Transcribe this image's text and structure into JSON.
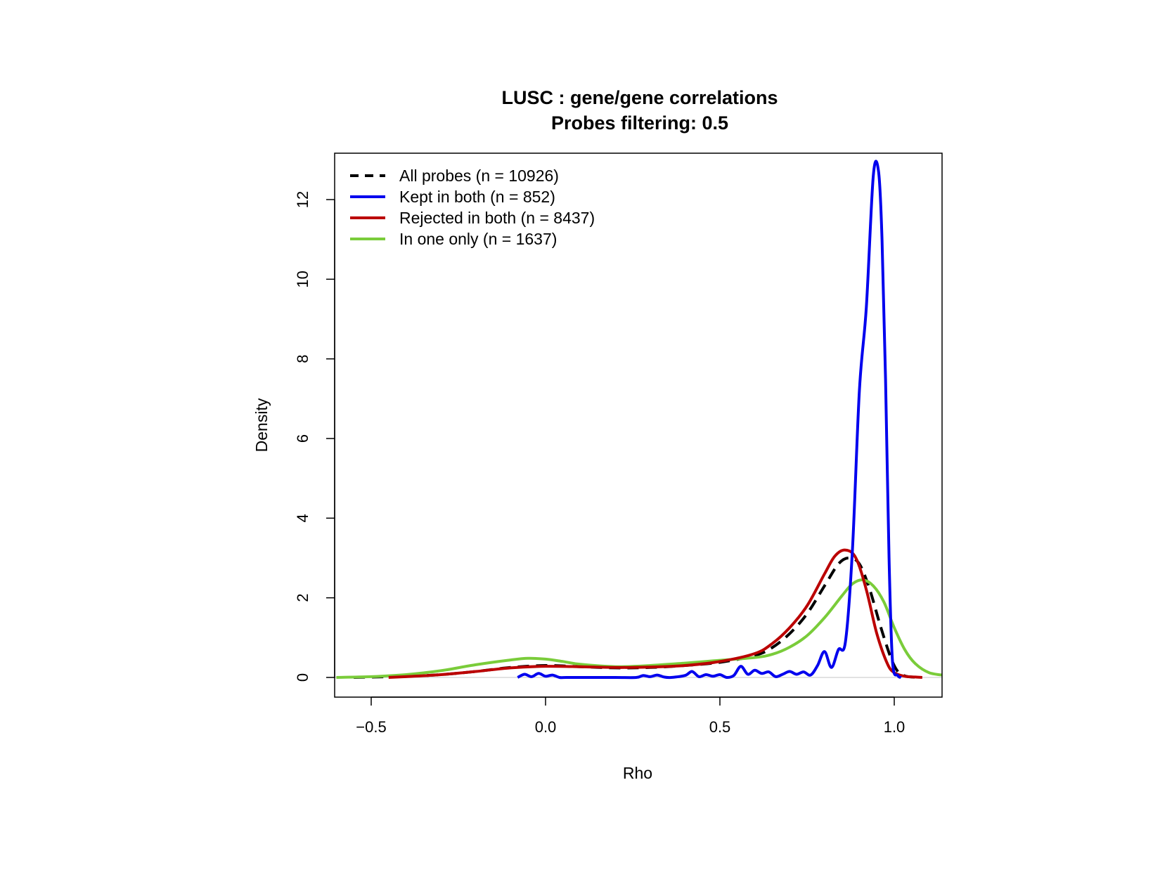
{
  "chart_data": {
    "type": "line",
    "title": "LUSC : gene/gene correlations",
    "subtitle": "Probes filtering: 0.5",
    "xlabel": "Rho",
    "ylabel": "Density",
    "xlim": [
      -0.6,
      1.15
    ],
    "ylim": [
      -0.5,
      13.2
    ],
    "x_ticks": [
      -0.5,
      0.0,
      0.5,
      1.0
    ],
    "x_tick_labels": [
      "−0.5",
      "0.0",
      "0.5",
      "1.0"
    ],
    "y_ticks": [
      0,
      2,
      4,
      6,
      8,
      10,
      12
    ],
    "y_tick_labels": [
      "0",
      "2",
      "4",
      "6",
      "8",
      "10",
      "12"
    ],
    "zero_line": true,
    "grid": false,
    "legend_position": "top-left",
    "series": [
      {
        "name": "All probes (n = 10926)",
        "color": "#000000",
        "dash": "dashed",
        "x": [
          -0.55,
          -0.4,
          -0.3,
          -0.2,
          -0.1,
          0.0,
          0.1,
          0.2,
          0.3,
          0.4,
          0.5,
          0.6,
          0.65,
          0.7,
          0.75,
          0.8,
          0.84,
          0.87,
          0.9,
          0.93,
          0.96,
          0.99,
          1.01,
          1.03,
          1.05,
          1.08
        ],
        "y": [
          0.0,
          0.03,
          0.07,
          0.15,
          0.25,
          0.3,
          0.27,
          0.24,
          0.25,
          0.3,
          0.38,
          0.55,
          0.75,
          1.1,
          1.6,
          2.3,
          2.85,
          3.0,
          2.85,
          2.2,
          1.3,
          0.5,
          0.15,
          0.04,
          0.01,
          0.0
        ]
      },
      {
        "name": "Kept in both (n = 852)",
        "color": "#0000ee",
        "dash": "solid",
        "x": [
          -0.08,
          -0.06,
          -0.04,
          -0.02,
          0.0,
          0.02,
          0.04,
          0.06,
          0.1,
          0.2,
          0.26,
          0.28,
          0.3,
          0.32,
          0.34,
          0.36,
          0.4,
          0.42,
          0.44,
          0.46,
          0.48,
          0.5,
          0.52,
          0.54,
          0.56,
          0.58,
          0.6,
          0.62,
          0.64,
          0.66,
          0.68,
          0.7,
          0.72,
          0.74,
          0.76,
          0.78,
          0.8,
          0.82,
          0.84,
          0.86,
          0.88,
          0.9,
          0.92,
          0.94,
          0.955,
          0.965,
          0.975,
          0.985,
          0.995,
          1.01,
          1.02
        ],
        "y": [
          0.0,
          0.08,
          0.02,
          0.1,
          0.03,
          0.06,
          0.0,
          0.0,
          0.0,
          0.0,
          0.0,
          0.05,
          0.02,
          0.06,
          0.01,
          0.0,
          0.05,
          0.15,
          0.02,
          0.07,
          0.03,
          0.07,
          0.0,
          0.05,
          0.28,
          0.08,
          0.18,
          0.1,
          0.14,
          0.02,
          0.08,
          0.15,
          0.08,
          0.14,
          0.06,
          0.3,
          0.65,
          0.25,
          0.7,
          0.9,
          3.2,
          7.2,
          9.3,
          12.6,
          12.7,
          11.0,
          7.5,
          3.0,
          0.4,
          0.05,
          0.0
        ]
      },
      {
        "name": "Rejected in both (n = 8437)",
        "color": "#bb0000",
        "dash": "solid",
        "x": [
          -0.45,
          -0.4,
          -0.3,
          -0.2,
          -0.1,
          0.0,
          0.1,
          0.2,
          0.3,
          0.4,
          0.5,
          0.6,
          0.65,
          0.7,
          0.75,
          0.8,
          0.83,
          0.86,
          0.89,
          0.92,
          0.95,
          0.98,
          1.0,
          1.03,
          1.06,
          1.08
        ],
        "y": [
          0.0,
          0.02,
          0.07,
          0.15,
          0.24,
          0.28,
          0.27,
          0.25,
          0.26,
          0.3,
          0.4,
          0.6,
          0.85,
          1.25,
          1.8,
          2.6,
          3.05,
          3.2,
          3.0,
          2.2,
          1.1,
          0.35,
          0.12,
          0.03,
          0.01,
          0.0
        ]
      },
      {
        "name": "In one only (n = 1637)",
        "color": "#7acc3a",
        "dash": "solid",
        "x": [
          -0.6,
          -0.5,
          -0.4,
          -0.3,
          -0.2,
          -0.1,
          -0.05,
          0.0,
          0.05,
          0.1,
          0.2,
          0.3,
          0.4,
          0.5,
          0.6,
          0.65,
          0.7,
          0.75,
          0.8,
          0.85,
          0.88,
          0.91,
          0.94,
          0.97,
          1.0,
          1.03,
          1.06,
          1.1,
          1.15
        ],
        "y": [
          0.0,
          0.02,
          0.07,
          0.17,
          0.32,
          0.44,
          0.48,
          0.46,
          0.4,
          0.33,
          0.27,
          0.3,
          0.36,
          0.43,
          0.5,
          0.58,
          0.76,
          1.05,
          1.5,
          2.05,
          2.35,
          2.45,
          2.3,
          1.9,
          1.25,
          0.7,
          0.35,
          0.12,
          0.05
        ]
      }
    ]
  }
}
